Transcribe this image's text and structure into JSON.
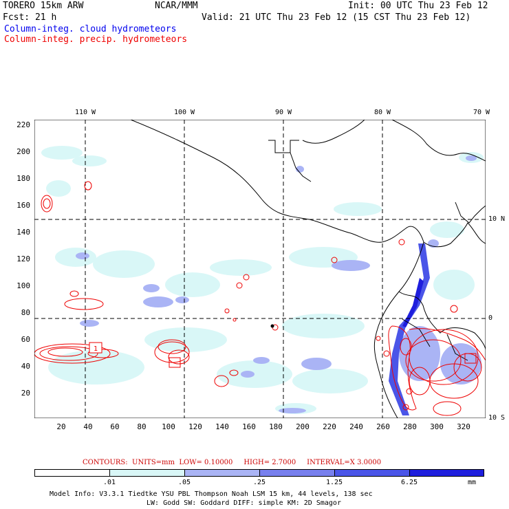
{
  "header": {
    "model": "TORERO  15km ARW",
    "org": "NCAR/MMM",
    "init": "Init: 00 UTC Thu 23 Feb 12",
    "fcst": "Fcst:   21 h",
    "valid": "Valid: 21 UTC Thu 23 Feb 12 (15 CST Thu 23 Feb 12)",
    "field_cloud": "Column-integ. cloud hydrometeors",
    "field_precip": "Column-integ. precip. hydrometeors"
  },
  "axes": {
    "lon_top": [
      "110 W",
      "100 W",
      "90 W",
      "80 W",
      "70 W"
    ],
    "lat_right": [
      "10 N",
      "0",
      "10 S"
    ],
    "y_grid": [
      "220",
      "200",
      "180",
      "160",
      "140",
      "120",
      "100",
      "80",
      "60",
      "40",
      "20"
    ],
    "x_grid": [
      "20",
      "40",
      "60",
      "80",
      "100",
      "120",
      "140",
      "160",
      "180",
      "200",
      "220",
      "240",
      "260",
      "280",
      "300",
      "320"
    ]
  },
  "contours_line": {
    "label": "CONTOURS:",
    "units": "UNITS=mm",
    "low": "LOW= 0.10000",
    "high": "HIGH=  2.7000",
    "interval": "INTERVAL=X  3.0000"
  },
  "box_label": "1",
  "legend": {
    "labels": [
      ".01",
      ".05",
      ".25",
      "1.25",
      "6.25"
    ],
    "unit": "mm",
    "colors": [
      "#ffffff",
      "#d9f7f7",
      "#aab4f5",
      "#7880ee",
      "#4a55e8",
      "#1e1edd"
    ]
  },
  "footer": {
    "line1": "Model Info: V3.3.1   Tiedtke YSU PBL  Thompson    Noah LSM  15 km,   44 levels,  138 sec",
    "line2": "LW: Godd SW: Goddard DIFF: simple KM: 2D Smagor"
  },
  "colors": {
    "cloud_text": "#0000ee",
    "precip_text": "#ee0000"
  }
}
